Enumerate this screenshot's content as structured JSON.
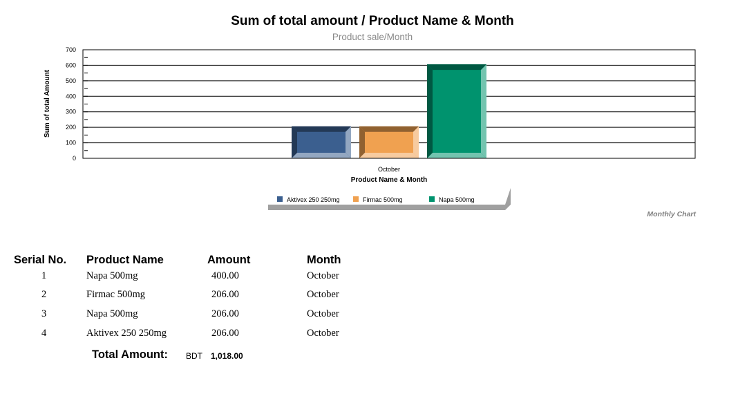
{
  "chart_data": {
    "type": "bar",
    "title": "Sum of total amount / Product Name & Month",
    "subtitle": "Product sale/Month",
    "xlabel": "Product Name & Month",
    "ylabel": "Sum of total Amount",
    "categories": [
      "October"
    ],
    "ylim": [
      0,
      700
    ],
    "yticks": [
      "0",
      "100",
      "200",
      "300",
      "400",
      "500",
      "600",
      "700"
    ],
    "grid": true,
    "legend_position": "bottom",
    "series": [
      {
        "name": "Aktivex 250 250mg",
        "values": [
          206
        ],
        "color": "#3b5f8f"
      },
      {
        "name": "Firmac 500mg",
        "values": [
          206
        ],
        "color": "#f0a150"
      },
      {
        "name": "Napa 500mg",
        "values": [
          606
        ],
        "color": "#00936e"
      }
    ],
    "footnote": "Monthly Chart"
  },
  "table": {
    "headers": [
      "Serial No.",
      "Product Name",
      "Amount",
      "Month"
    ],
    "rows": [
      [
        "1",
        "Napa 500mg",
        "400.00",
        "October"
      ],
      [
        "2",
        "Firmac 500mg",
        "206.00",
        "October"
      ],
      [
        "3",
        "Napa 500mg",
        "206.00",
        "October"
      ],
      [
        "4",
        "Aktivex 250 250mg",
        "206.00",
        "October"
      ]
    ],
    "total_label": "Total Amount:",
    "total_currency": "BDT",
    "total_value": "1,018.00"
  }
}
